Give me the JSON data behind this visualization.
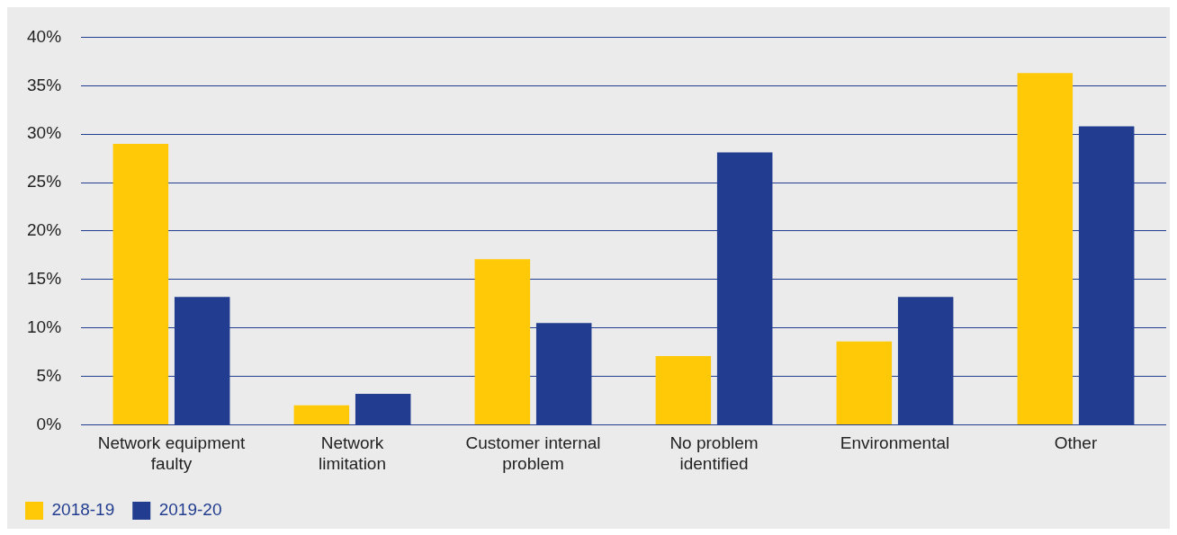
{
  "chart_data": {
    "type": "bar",
    "categories": [
      "Network equipment faulty",
      "Network limitation",
      "Customer internal problem",
      "No problem identified",
      "Environmental",
      "Other"
    ],
    "series": [
      {
        "name": "2018-19",
        "color": "#ffc907",
        "values": [
          29.0,
          2.0,
          17.1,
          7.1,
          8.6,
          36.3
        ]
      },
      {
        "name": "2019-20",
        "color": "#223d8f",
        "values": [
          13.2,
          3.2,
          10.5,
          28.1,
          13.2,
          30.8
        ]
      }
    ],
    "ylim": [
      0,
      40
    ],
    "yticks": [
      {
        "value": 0,
        "label": "0%"
      },
      {
        "value": 5,
        "label": "5%"
      },
      {
        "value": 10,
        "label": "10%"
      },
      {
        "value": 15,
        "label": "15%"
      },
      {
        "value": 20,
        "label": "20%"
      },
      {
        "value": 25,
        "label": "25%"
      },
      {
        "value": 30,
        "label": "30%"
      },
      {
        "value": 35,
        "label": "35%"
      },
      {
        "value": 40,
        "label": "40%"
      }
    ],
    "grid": "y",
    "legend": "bottom left"
  }
}
